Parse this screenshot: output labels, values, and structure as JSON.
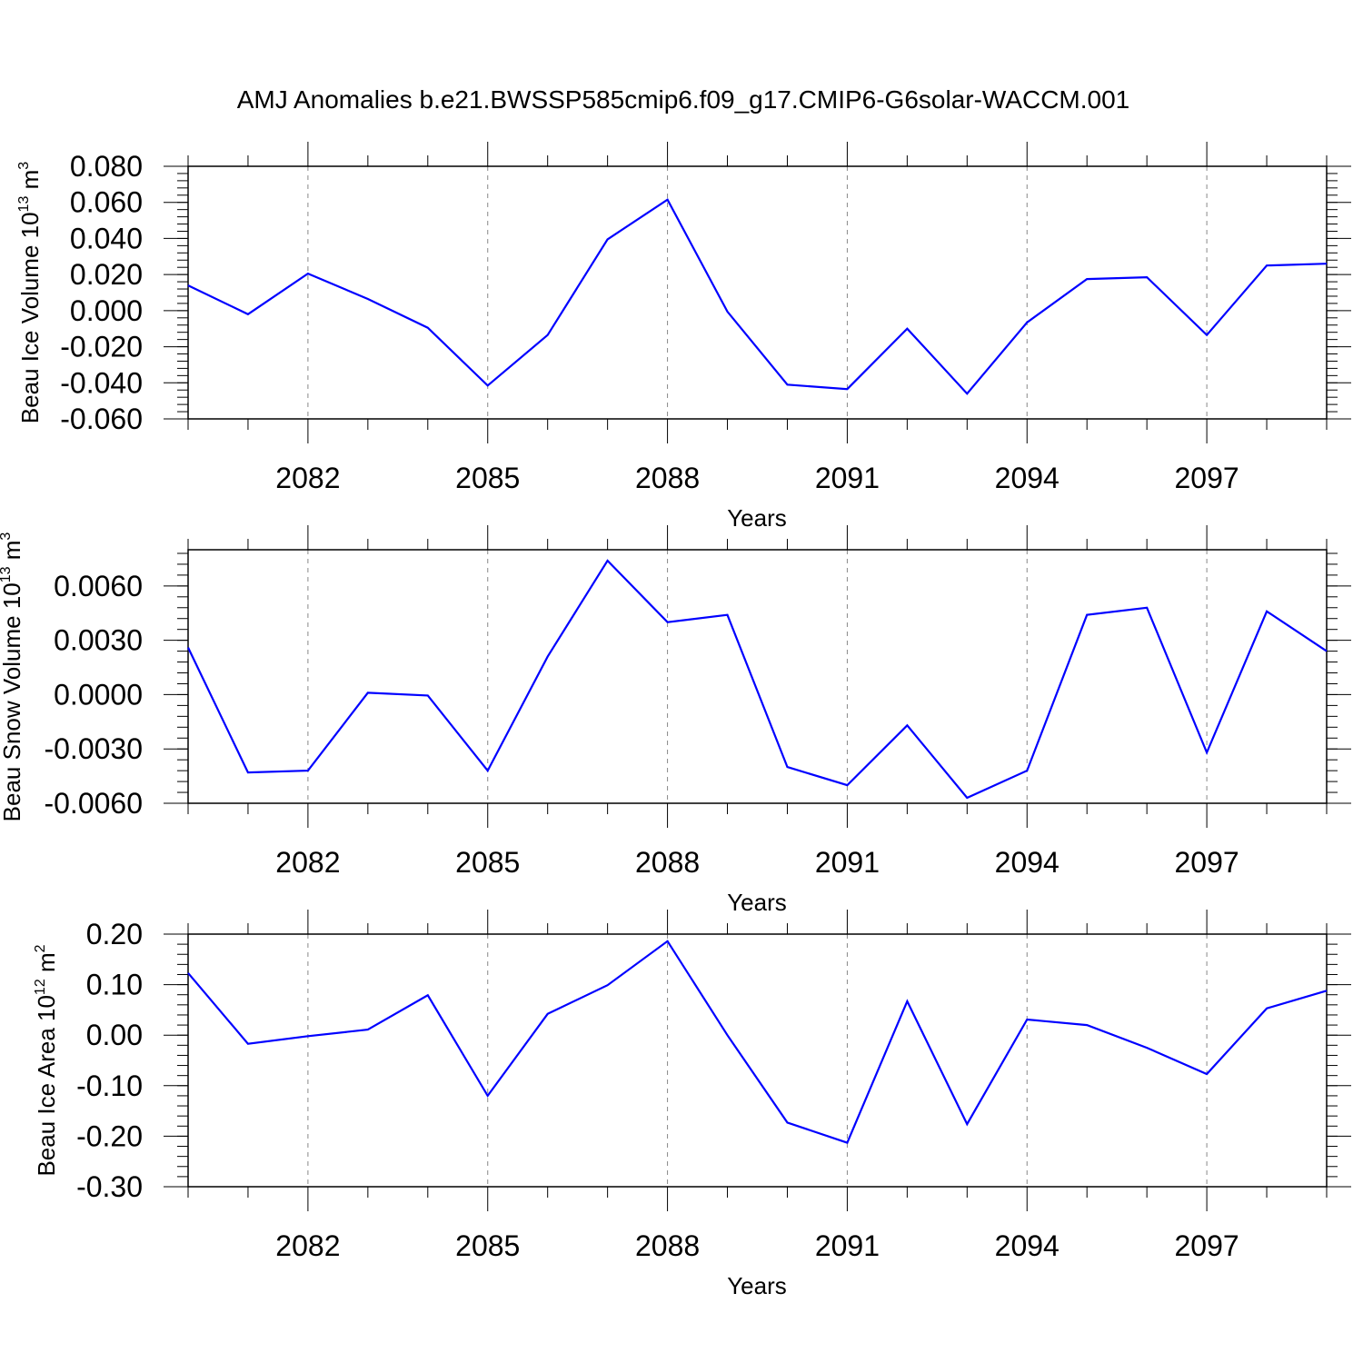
{
  "title": "AMJ Anomalies b.e21.BWSSP585cmip6.f09_g17.CMIP6-G6solar-WACCM.001",
  "line_color": "#0000ff",
  "chart_data": [
    {
      "type": "line",
      "ylabel": "Beau Ice Volume 10",
      "ylabel_exp": "13",
      "ylabel_unit": " m",
      "ylabel_unit_exp": "3",
      "xlabel": "Years",
      "xlim": [
        2080,
        2099
      ],
      "ylim": [
        -0.06,
        0.08
      ],
      "yticks": [
        -0.06,
        -0.04,
        -0.02,
        0.0,
        0.02,
        0.04,
        0.06,
        0.08
      ],
      "ytick_labels": [
        "-0.060",
        "-0.040",
        "-0.020",
        "0.000",
        "0.020",
        "0.040",
        "0.060",
        "0.080"
      ],
      "xticks": [
        2082,
        2085,
        2088,
        2091,
        2094,
        2097
      ],
      "xtick_labels": [
        "2082",
        "2085",
        "2088",
        "2091",
        "2094",
        "2097"
      ],
      "grid": "vertical dashed at major x ticks",
      "series": [
        {
          "x": [
            2080,
            2081,
            2082,
            2083,
            2084,
            2085,
            2086,
            2087,
            2088,
            2089,
            2090,
            2091,
            2092,
            2093,
            2094,
            2095,
            2096,
            2097,
            2098,
            2099
          ],
          "values": [
            0.014,
            -0.002,
            0.0205,
            0.0065,
            -0.0095,
            -0.0415,
            -0.0135,
            0.0395,
            0.0615,
            -0.0005,
            -0.041,
            -0.0435,
            -0.01,
            -0.046,
            -0.0065,
            0.0175,
            0.0185,
            -0.0135,
            0.025,
            0.026
          ]
        }
      ]
    },
    {
      "type": "line",
      "ylabel": "Beau Snow Volume 10",
      "ylabel_exp": "13",
      "ylabel_unit": " m",
      "ylabel_unit_exp": "3",
      "xlabel": "Years",
      "xlim": [
        2080,
        2099
      ],
      "ylim": [
        -0.006,
        0.008
      ],
      "yticks": [
        -0.006,
        -0.003,
        0.0,
        0.003,
        0.006
      ],
      "ytick_labels": [
        "-0.0060",
        "-0.0030",
        "0.0000",
        "0.0030",
        "0.0060"
      ],
      "xticks": [
        2082,
        2085,
        2088,
        2091,
        2094,
        2097
      ],
      "xtick_labels": [
        "2082",
        "2085",
        "2088",
        "2091",
        "2094",
        "2097"
      ],
      "grid": "vertical dashed at major x ticks",
      "series": [
        {
          "x": [
            2080,
            2081,
            2082,
            2083,
            2084,
            2085,
            2086,
            2087,
            2088,
            2089,
            2090,
            2091,
            2092,
            2093,
            2094,
            2095,
            2096,
            2097,
            2098,
            2099
          ],
          "values": [
            0.0026,
            -0.0043,
            -0.0042,
            0.0001,
            -5e-05,
            -0.0042,
            0.0021,
            0.0074,
            0.004,
            0.0044,
            -0.004,
            -0.005,
            -0.0017,
            -0.0057,
            -0.0042,
            0.0044,
            0.0048,
            -0.0032,
            0.0046,
            0.0024
          ]
        }
      ]
    },
    {
      "type": "line",
      "ylabel": "Beau Ice Area 10",
      "ylabel_exp": "12",
      "ylabel_unit": " m",
      "ylabel_unit_exp": "2",
      "xlabel": "Years",
      "xlim": [
        2080,
        2099
      ],
      "ylim": [
        -0.3,
        0.2
      ],
      "yticks": [
        -0.3,
        -0.2,
        -0.1,
        0.0,
        0.1,
        0.2
      ],
      "ytick_labels": [
        "-0.30",
        "-0.20",
        "-0.10",
        "0.00",
        "0.10",
        "0.20"
      ],
      "xticks": [
        2082,
        2085,
        2088,
        2091,
        2094,
        2097
      ],
      "xtick_labels": [
        "2082",
        "2085",
        "2088",
        "2091",
        "2094",
        "2097"
      ],
      "grid": "vertical dashed at major x ticks",
      "series": [
        {
          "x": [
            2080,
            2081,
            2082,
            2083,
            2084,
            2085,
            2086,
            2087,
            2088,
            2089,
            2090,
            2091,
            2092,
            2093,
            2094,
            2095,
            2096,
            2097,
            2098,
            2099
          ],
          "values": [
            0.123,
            -0.017,
            -0.002,
            0.011,
            0.079,
            -0.12,
            0.042,
            0.099,
            0.186,
            0.0,
            -0.173,
            -0.213,
            0.067,
            -0.176,
            0.031,
            0.02,
            -0.025,
            -0.077,
            0.053,
            0.088
          ]
        }
      ]
    }
  ]
}
